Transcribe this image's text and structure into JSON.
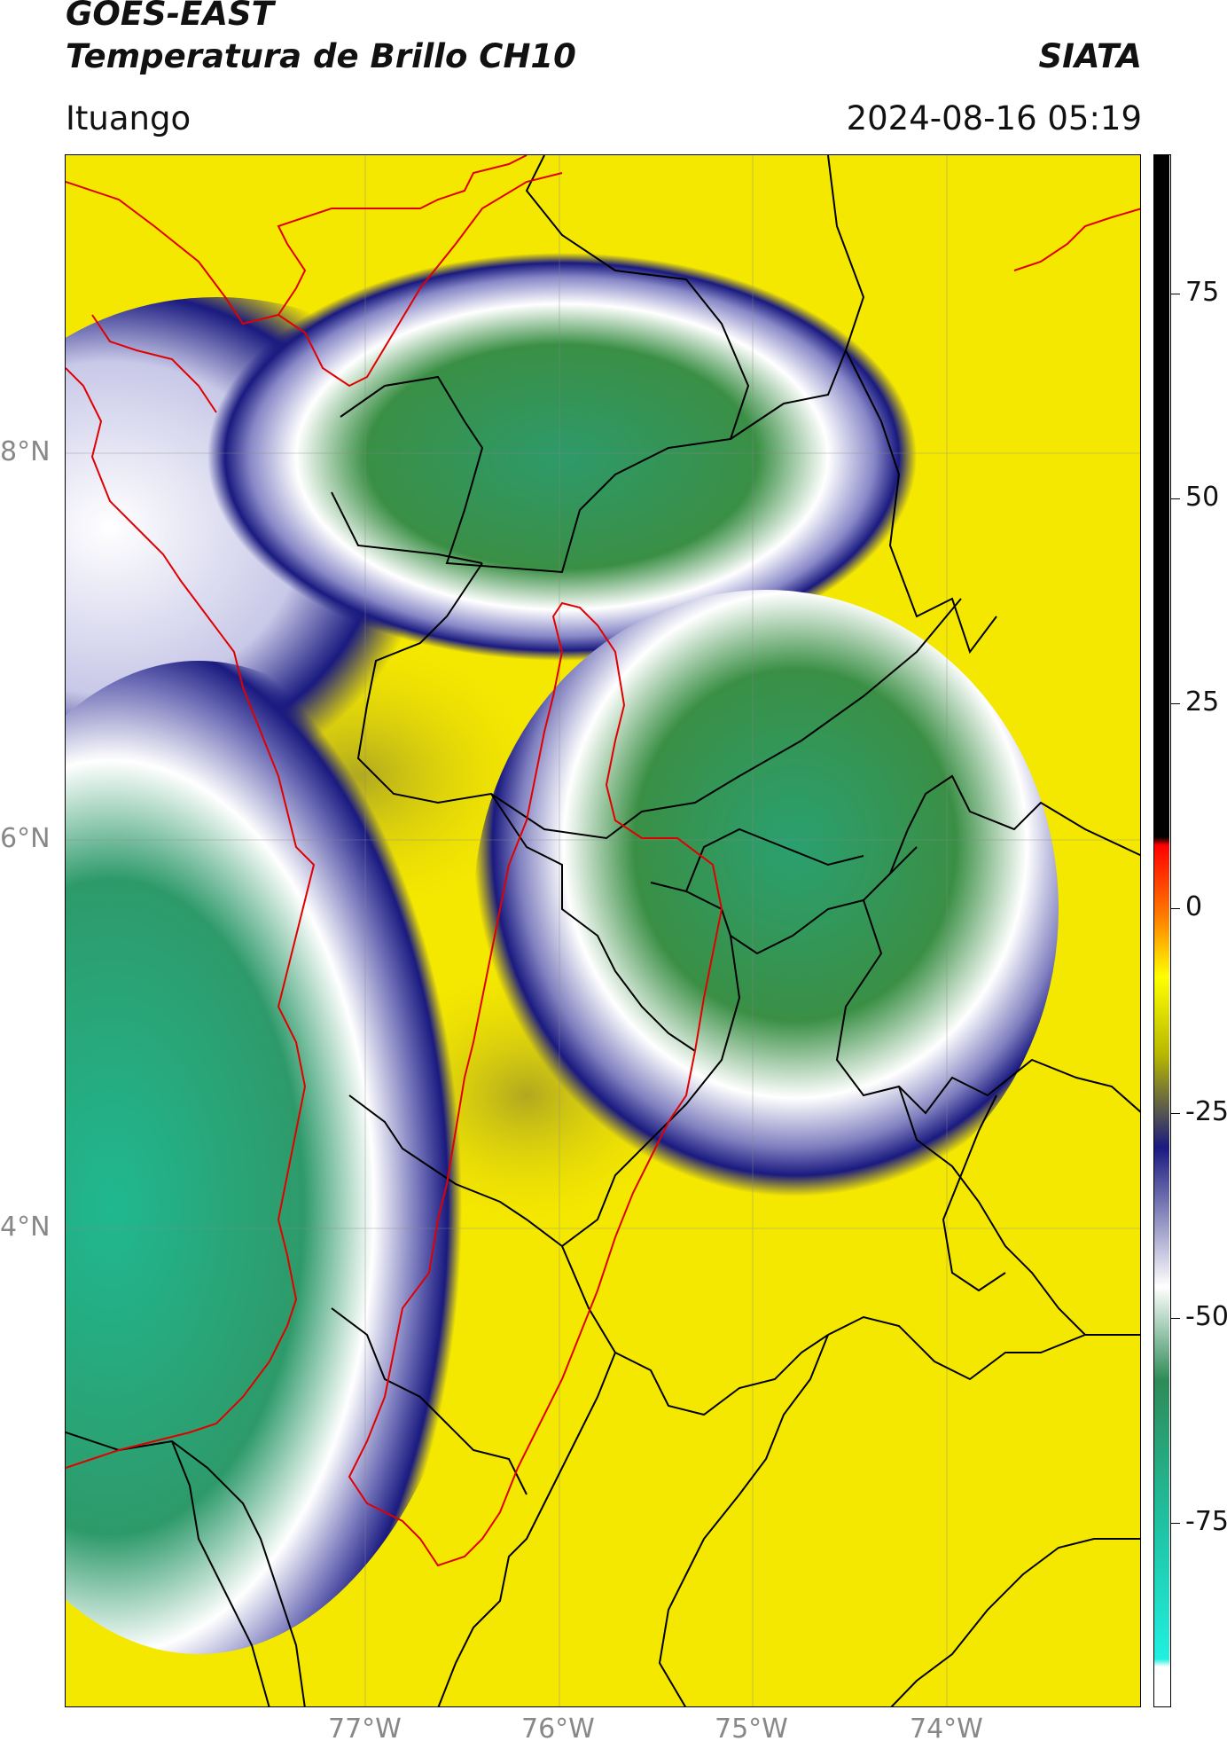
{
  "header": {
    "title_line1": "GOES-EAST",
    "title_line2": "Temperatura de Brillo CH10",
    "brand": "SIATA",
    "location": "Ituango",
    "datetime": "2024-08-16 05:19"
  },
  "map": {
    "latitude_labels": [
      "8°N",
      "6°N",
      "4°N"
    ],
    "longitude_labels": [
      "77°W",
      "76°W",
      "75°W",
      "74°W"
    ],
    "colors": {
      "warm": "#f5e800",
      "cloud_edge": "#1a1a80",
      "cloud_mid": "#ffffff",
      "cloud_cold": "#2e8b57",
      "coldest": "#20c0a0",
      "boundary_red": "#e00000",
      "boundary_black": "#000000"
    }
  },
  "colorbar": {
    "tick_labels": [
      "75",
      "50",
      "25",
      "0",
      "-25",
      "-50",
      "-75"
    ],
    "colors_top_to_bottom": [
      "#000000",
      "#ff0000",
      "#ff8c00",
      "#ffff00",
      "#b8b800",
      "#1a1a80",
      "#ffffff",
      "#2e8b57",
      "#20e0d0",
      "#ffffff"
    ]
  }
}
